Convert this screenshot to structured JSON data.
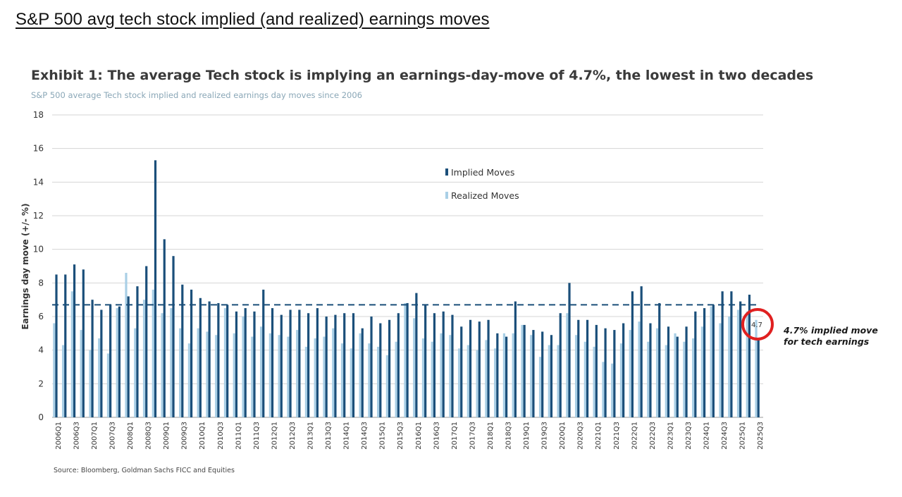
{
  "headline": "S&P 500 avg tech stock implied (and realized) earnings moves",
  "exhibit_title": "Exhibit 1: The average Tech stock is implying an earnings-day-move of 4.7%, the lowest in two decades",
  "exhibit_subtitle": "S&P 500 average Tech stock implied and realized earnings day moves since 2006",
  "source": "Source: Bloomberg, Goldman Sachs FICC and Equities",
  "colors": {
    "implied": "#1b4f7a",
    "realized": "#a9cfe6",
    "annotation_circle": "#e02020",
    "grid": "#d4d4d4",
    "avg_line": "#1b4f7a"
  },
  "chart_data": {
    "type": "bar",
    "ylabel": "Earnings day move (+/- %)",
    "xlabel": "",
    "ylim": [
      0,
      18
    ],
    "yticks": [
      0,
      2,
      4,
      6,
      8,
      10,
      12,
      14,
      16,
      18
    ],
    "grid": true,
    "legend_position": "top-center",
    "average_line": 6.7,
    "categories": [
      "2006Q1",
      "2006Q2",
      "2006Q3",
      "2006Q4",
      "2007Q1",
      "2007Q2",
      "2007Q3",
      "2007Q4",
      "2008Q1",
      "2008Q2",
      "2008Q3",
      "2008Q4",
      "2009Q1",
      "2009Q2",
      "2009Q3",
      "2009Q4",
      "2010Q1",
      "2010Q2",
      "2010Q3",
      "2010Q4",
      "2011Q1",
      "2011Q2",
      "2011Q3",
      "2011Q4",
      "2012Q1",
      "2012Q2",
      "2012Q3",
      "2012Q4",
      "2013Q1",
      "2013Q2",
      "2013Q3",
      "2013Q4",
      "2014Q1",
      "2014Q2",
      "2014Q3",
      "2014Q4",
      "2015Q1",
      "2015Q2",
      "2015Q3",
      "2015Q4",
      "2016Q1",
      "2016Q2",
      "2016Q3",
      "2016Q4",
      "2017Q1",
      "2017Q2",
      "2017Q3",
      "2017Q4",
      "2018Q1",
      "2018Q2",
      "2018Q3",
      "2018Q4",
      "2019Q1",
      "2019Q2",
      "2019Q3",
      "2019Q4",
      "2020Q1",
      "2020Q2",
      "2020Q3",
      "2020Q4",
      "2021Q1",
      "2021Q2",
      "2021Q3",
      "2021Q4",
      "2022Q1",
      "2022Q2",
      "2022Q3",
      "2022Q4",
      "2023Q1",
      "2023Q2",
      "2023Q3",
      "2023Q4",
      "2024Q1",
      "2024Q2",
      "2024Q3",
      "2024Q4",
      "2025Q1",
      "2025Q2",
      "2025Q3"
    ],
    "tick_labels": [
      "2006Q1",
      "2006Q3",
      "2007Q1",
      "2007Q3",
      "2008Q1",
      "2008Q3",
      "2009Q1",
      "2009Q3",
      "2010Q1",
      "2010Q3",
      "2011Q1",
      "2011Q3",
      "2012Q1",
      "2012Q3",
      "2013Q1",
      "2013Q3",
      "2014Q1",
      "2014Q3",
      "2015Q1",
      "2015Q3",
      "2016Q1",
      "2016Q3",
      "2017Q1",
      "2017Q3",
      "2018Q1",
      "2018Q3",
      "2019Q1",
      "2019Q3",
      "2020Q1",
      "2020Q3",
      "2021Q1",
      "2021Q3",
      "2022Q1",
      "2022Q3",
      "2023Q1",
      "2023Q3",
      "2024Q1",
      "2024Q3",
      "2025Q1",
      "2025Q3"
    ],
    "series": [
      {
        "name": "Realized Moves",
        "values": [
          5.6,
          4.3,
          7.5,
          5.2,
          4.0,
          4.7,
          3.8,
          6.5,
          8.6,
          5.3,
          7.0,
          7.6,
          6.2,
          6.5,
          5.3,
          4.4,
          5.3,
          5.1,
          4.9,
          6.5,
          5.0,
          6.0,
          4.8,
          5.4,
          5.0,
          4.9,
          4.8,
          5.2,
          4.2,
          4.7,
          4.8,
          5.3,
          4.4,
          4.1,
          5.0,
          4.4,
          4.2,
          3.7,
          4.5,
          6.8,
          5.9,
          4.7,
          4.5,
          5.0,
          4.9,
          4.1,
          4.3,
          4.0,
          4.6,
          4.1,
          5.0,
          5.0,
          5.5,
          4.9,
          3.6,
          4.3,
          4.3,
          6.2,
          4.9,
          4.5,
          4.2,
          3.3,
          3.2,
          4.4,
          5.2,
          5.7,
          4.5,
          5.3,
          4.3,
          5.0,
          4.5,
          4.7,
          5.4,
          6.6,
          5.6,
          6.0,
          6.4,
          6.3,
          5.8
        ]
      },
      {
        "name": "Implied Moves",
        "values": [
          8.5,
          8.5,
          9.1,
          8.8,
          7.0,
          6.4,
          6.7,
          6.6,
          7.2,
          7.8,
          9.0,
          15.3,
          10.6,
          9.6,
          7.9,
          7.6,
          7.1,
          6.9,
          6.8,
          6.7,
          6.3,
          6.5,
          6.3,
          7.6,
          6.5,
          6.1,
          6.4,
          6.4,
          6.2,
          6.5,
          6.0,
          6.1,
          6.2,
          6.2,
          5.3,
          6.0,
          5.6,
          5.8,
          6.2,
          6.8,
          7.4,
          6.7,
          6.2,
          6.3,
          6.1,
          5.4,
          5.8,
          5.7,
          5.8,
          5.0,
          4.8,
          6.9,
          5.5,
          5.2,
          5.1,
          4.9,
          6.2,
          8.0,
          5.8,
          5.8,
          5.5,
          5.3,
          5.2,
          5.6,
          7.5,
          7.8,
          5.6,
          6.8,
          5.4,
          4.8,
          5.4,
          6.3,
          6.5,
          6.7,
          7.5,
          7.5,
          6.9,
          7.3,
          4.7
        ]
      }
    ],
    "legend": [
      "Implied Moves",
      "Realized Moves"
    ],
    "callout_value": "4.7",
    "annotation": [
      "4.7% implied move",
      "for tech earnings"
    ]
  }
}
